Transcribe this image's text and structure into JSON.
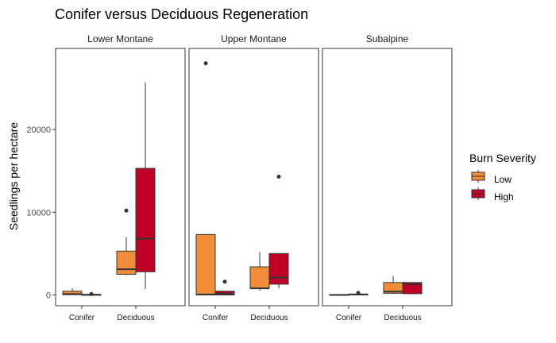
{
  "chart_data": {
    "type": "boxplot",
    "title": "Conifer versus Deciduous Regeneration",
    "ylabel": "Seedlings per hectare",
    "xlabel": "",
    "ylim": [
      -1300,
      29800
    ],
    "yticks": [
      0,
      10000,
      20000
    ],
    "grid": false,
    "categories": [
      "Conifer",
      "Deciduous"
    ],
    "legend": {
      "title": "Burn Severity",
      "position": "right",
      "entries": [
        {
          "label": "Low",
          "color": "#f28e3b"
        },
        {
          "label": "High",
          "color": "#c00027"
        }
      ]
    },
    "panels": [
      {
        "label": "Lower Montane",
        "boxes": [
          {
            "category": "Conifer",
            "severity": "Low",
            "min": 0,
            "q1": 30,
            "median": 100,
            "q3": 450,
            "max": 800,
            "outliers": []
          },
          {
            "category": "Conifer",
            "severity": "High",
            "min": 0,
            "q1": 0,
            "median": 20,
            "q3": 60,
            "max": 100,
            "outliers": [
              120
            ]
          },
          {
            "category": "Deciduous",
            "severity": "Low",
            "min": 2400,
            "q1": 2500,
            "median": 3100,
            "q3": 5300,
            "max": 7000,
            "outliers": [
              10200
            ]
          },
          {
            "category": "Deciduous",
            "severity": "High",
            "min": 700,
            "q1": 2800,
            "median": 6800,
            "q3": 15300,
            "max": 25700,
            "outliers": []
          }
        ]
      },
      {
        "label": "Upper Montane",
        "boxes": [
          {
            "category": "Conifer",
            "severity": "Low",
            "min": 0,
            "q1": 0,
            "median": 50,
            "q3": 7300,
            "max": 7300,
            "outliers": [
              28000
            ]
          },
          {
            "category": "Conifer",
            "severity": "High",
            "min": 0,
            "q1": 0,
            "median": 150,
            "q3": 450,
            "max": 450,
            "outliers": [
              1600
            ]
          },
          {
            "category": "Deciduous",
            "severity": "Low",
            "min": 500,
            "q1": 800,
            "median": 800,
            "q3": 3400,
            "max": 5200,
            "outliers": []
          },
          {
            "category": "Deciduous",
            "severity": "High",
            "min": 800,
            "q1": 1300,
            "median": 2100,
            "q3": 5000,
            "max": 5000,
            "outliers": [
              14300
            ]
          }
        ]
      },
      {
        "label": "Subalpine",
        "boxes": [
          {
            "category": "Conifer",
            "severity": "Low",
            "min": 0,
            "q1": 0,
            "median": 0,
            "q3": 50,
            "max": 50,
            "outliers": []
          },
          {
            "category": "Conifer",
            "severity": "High",
            "min": 0,
            "q1": 0,
            "median": 50,
            "q3": 100,
            "max": 100,
            "outliers": [
              250
            ]
          },
          {
            "category": "Deciduous",
            "severity": "Low",
            "min": 100,
            "q1": 200,
            "median": 400,
            "q3": 1500,
            "max": 2300,
            "outliers": []
          },
          {
            "category": "Deciduous",
            "severity": "High",
            "min": 100,
            "q1": 150,
            "median": 1300,
            "q3": 1500,
            "max": 1500,
            "outliers": []
          }
        ]
      }
    ]
  }
}
